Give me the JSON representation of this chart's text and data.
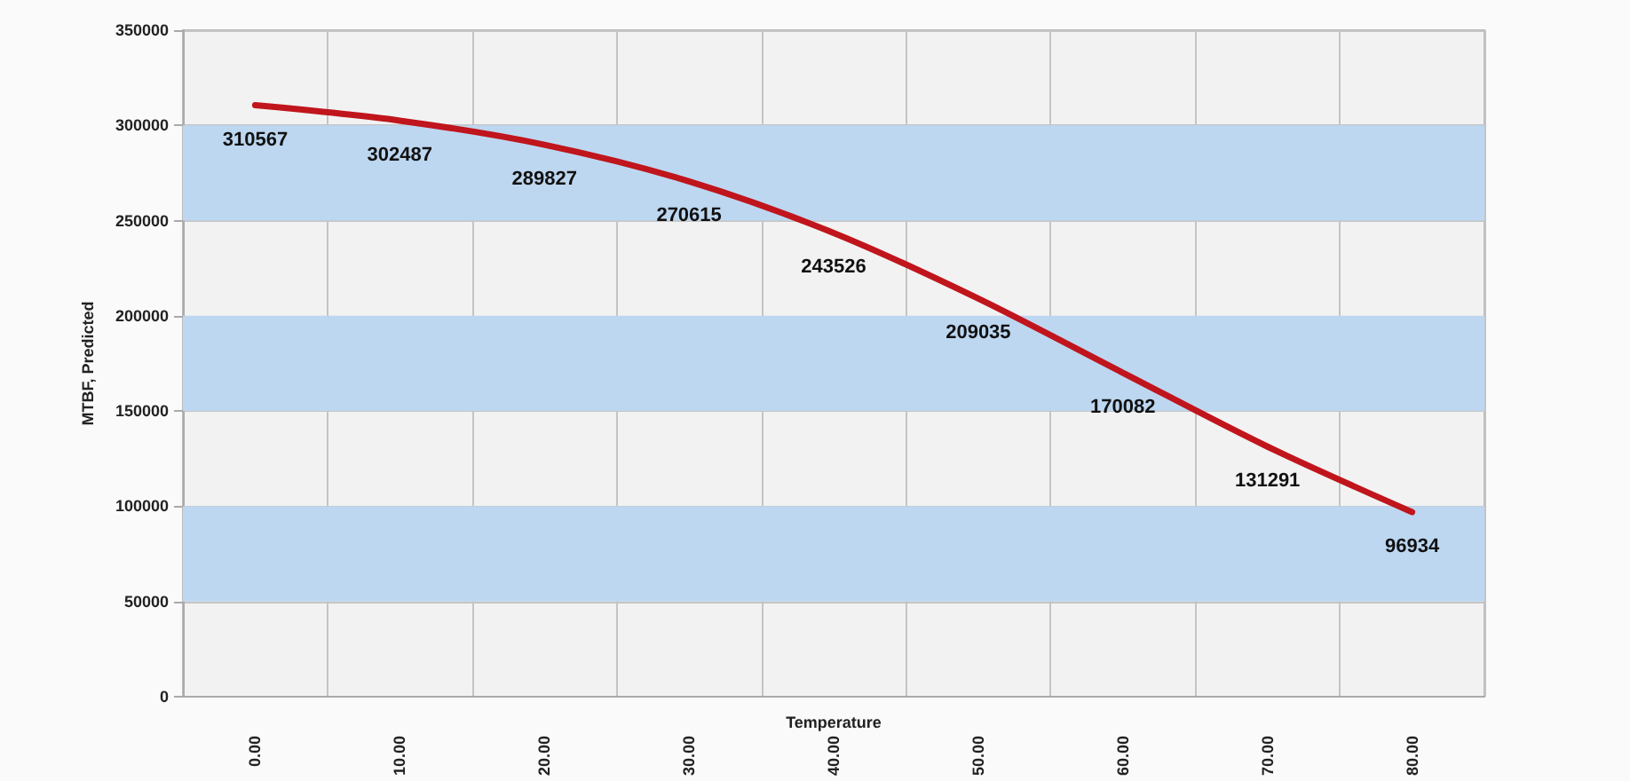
{
  "chart_data": {
    "type": "line",
    "xlabel": "Temperature",
    "ylabel": "MTBF, Predicted",
    "categories": [
      "0.00",
      "10.00",
      "20.00",
      "30.00",
      "40.00",
      "50.00",
      "60.00",
      "70.00",
      "80.00"
    ],
    "series": [
      {
        "color": "#c0151c",
        "values": [
          310567,
          302487,
          289827,
          270615,
          243526,
          209035,
          170082,
          131291,
          96934
        ]
      }
    ],
    "data_labels": true,
    "ylim": [
      0,
      350000
    ],
    "yticks": [
      0,
      50000,
      100000,
      150000,
      200000,
      250000,
      300000,
      350000
    ],
    "grid": true,
    "marker": "none",
    "line_style": "solid",
    "bands": [
      {
        "axis": "y",
        "from": 50000,
        "to": 100000,
        "color": "#bdd7f1"
      },
      {
        "axis": "y",
        "from": 150000,
        "to": 200000,
        "color": "#bdd7f1"
      },
      {
        "axis": "y",
        "from": 250000,
        "to": 300000,
        "color": "#bdd7f1"
      }
    ]
  }
}
